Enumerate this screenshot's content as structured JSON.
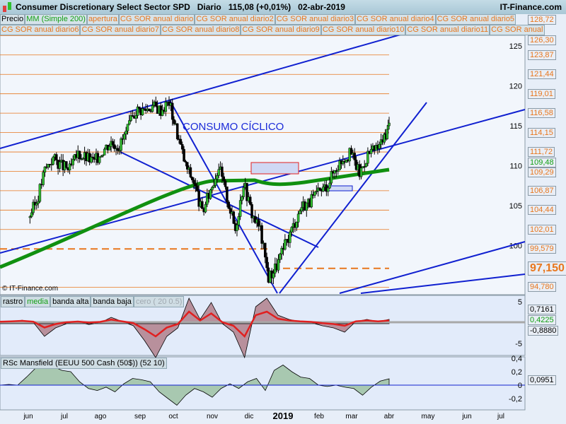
{
  "header": {
    "title": "Consumer Discretionary Select Sector SPD   Diario   115,08 (+0,01%)   02-abr-2019",
    "brand": "IT-Finance.com"
  },
  "legend_row1": [
    "Precio",
    "MM (Simple 200)",
    "apertura",
    "CG SOR anual diario",
    "CG SOR anual diario2",
    "CG SOR anual diario3",
    "CG SOR anual diario4",
    "CG SOR anual diario5"
  ],
  "legend_row2": [
    "CG SOR anual diario6",
    "CG SOR anual diario7",
    "CG SOR anual diario8",
    "CG SOR anual diario9",
    "CG SOR anual diario10",
    "CG SOR anual diario11",
    "CG SOR anual"
  ],
  "annotation": "CONSUMO CÍCLICO",
  "copyright": "© IT-Finance.com",
  "colors": {
    "level": "#e8771e",
    "trend": "#1020d0",
    "ma": "#109010",
    "up_fill": "#8fc0a0",
    "down_fill": "#b8909c"
  },
  "chart_data": [
    {
      "type": "candlestick",
      "title": "Consumer Discretionary Select Sector SPD",
      "ylim": [
        93.5,
        130
      ],
      "price_ticks": [
        100,
        105,
        110,
        115,
        120,
        125
      ],
      "levels": [
        "128,72",
        "126,30",
        "123,87",
        "121,44",
        "119,01",
        "116,58",
        "114,15",
        "111,72",
        "109,29",
        "106,87",
        "104,44",
        "102,01",
        "99,579",
        "97,150",
        "94,780"
      ],
      "ma_value": "109,48",
      "closes": [
        {
          "d": "2018-06-01",
          "c": 103.5
        },
        {
          "d": "2018-06-08",
          "c": 105.5
        },
        {
          "d": "2018-06-15",
          "c": 109.5
        },
        {
          "d": "2018-06-22",
          "c": 111
        },
        {
          "d": "2018-06-29",
          "c": 110
        },
        {
          "d": "2018-07-06",
          "c": 109.5
        },
        {
          "d": "2018-07-13",
          "c": 111.5
        },
        {
          "d": "2018-07-20",
          "c": 111
        },
        {
          "d": "2018-07-27",
          "c": 110.5
        },
        {
          "d": "2018-08-03",
          "c": 112
        },
        {
          "d": "2018-08-10",
          "c": 113
        },
        {
          "d": "2018-08-17",
          "c": 112.5
        },
        {
          "d": "2018-08-24",
          "c": 114.5
        },
        {
          "d": "2018-08-31",
          "c": 117
        },
        {
          "d": "2018-09-07",
          "c": 117
        },
        {
          "d": "2018-09-14",
          "c": 117.5
        },
        {
          "d": "2018-09-21",
          "c": 117
        },
        {
          "d": "2018-09-28",
          "c": 118
        },
        {
          "d": "2018-10-05",
          "c": 114
        },
        {
          "d": "2018-10-12",
          "c": 110
        },
        {
          "d": "2018-10-19",
          "c": 108
        },
        {
          "d": "2018-10-26",
          "c": 104
        },
        {
          "d": "2018-11-02",
          "c": 107
        },
        {
          "d": "2018-11-09",
          "c": 110
        },
        {
          "d": "2018-11-16",
          "c": 106
        },
        {
          "d": "2018-11-23",
          "c": 102
        },
        {
          "d": "2018-11-30",
          "c": 108
        },
        {
          "d": "2018-12-07",
          "c": 104
        },
        {
          "d": "2018-12-14",
          "c": 102
        },
        {
          "d": "2018-12-21",
          "c": 96
        },
        {
          "d": "2018-12-28",
          "c": 97.5
        },
        {
          "d": "2019-01-04",
          "c": 100
        },
        {
          "d": "2019-01-11",
          "c": 102.5
        },
        {
          "d": "2019-01-18",
          "c": 105
        },
        {
          "d": "2019-01-25",
          "c": 105.5
        },
        {
          "d": "2019-02-01",
          "c": 106.5
        },
        {
          "d": "2019-02-08",
          "c": 107.5
        },
        {
          "d": "2019-02-15",
          "c": 109.5
        },
        {
          "d": "2019-02-22",
          "c": 111
        },
        {
          "d": "2019-03-01",
          "c": 111.5
        },
        {
          "d": "2019-03-08",
          "c": 109
        },
        {
          "d": "2019-03-15",
          "c": 111.5
        },
        {
          "d": "2019-03-22",
          "c": 112
        },
        {
          "d": "2019-03-29",
          "c": 113.5
        },
        {
          "d": "2019-04-02",
          "c": 115.08
        }
      ]
    },
    {
      "type": "area",
      "legend": [
        "rastro",
        "media",
        "banda alta",
        "banda baja",
        "cero ( 20 0.5)"
      ],
      "ticks": [
        "5",
        "-5"
      ],
      "values_shown": [
        "0,7161",
        "0,4225",
        "-0,8880"
      ]
    },
    {
      "type": "area",
      "legend": "RSc Mansfield (EEUU 500 Cash (50$)) (52 10)",
      "ticks": [
        "0,4",
        "0,2",
        "0",
        "-0,2"
      ],
      "value_shown": "0,0951",
      "values": [
        0,
        0.01,
        0,
        0.12,
        0.25,
        0.3,
        0.28,
        0.22,
        0.2,
        0.05,
        -0.05,
        -0.08,
        -0.03,
        -0.1,
        0.02,
        0.1,
        0.08,
        0.05,
        -0.1,
        -0.2,
        -0.3,
        -0.15,
        -0.05,
        -0.1,
        -0.18,
        -0.05,
        0.02,
        -0.05,
        0.05,
        0.1,
        -0.08,
        0.22,
        0.3,
        0.2,
        0.12,
        0.1,
        0.0,
        -0.02,
        0,
        -0.03,
        -0.05,
        -0.15,
        -0.03,
        0.06,
        0.0951
      ]
    }
  ],
  "x_axis": {
    "months": [
      "jun",
      "jul",
      "ago",
      "sep",
      "oct",
      "nov",
      "dic",
      "2019",
      "feb",
      "mar",
      "abr",
      "may",
      "jun",
      "jul"
    ]
  }
}
